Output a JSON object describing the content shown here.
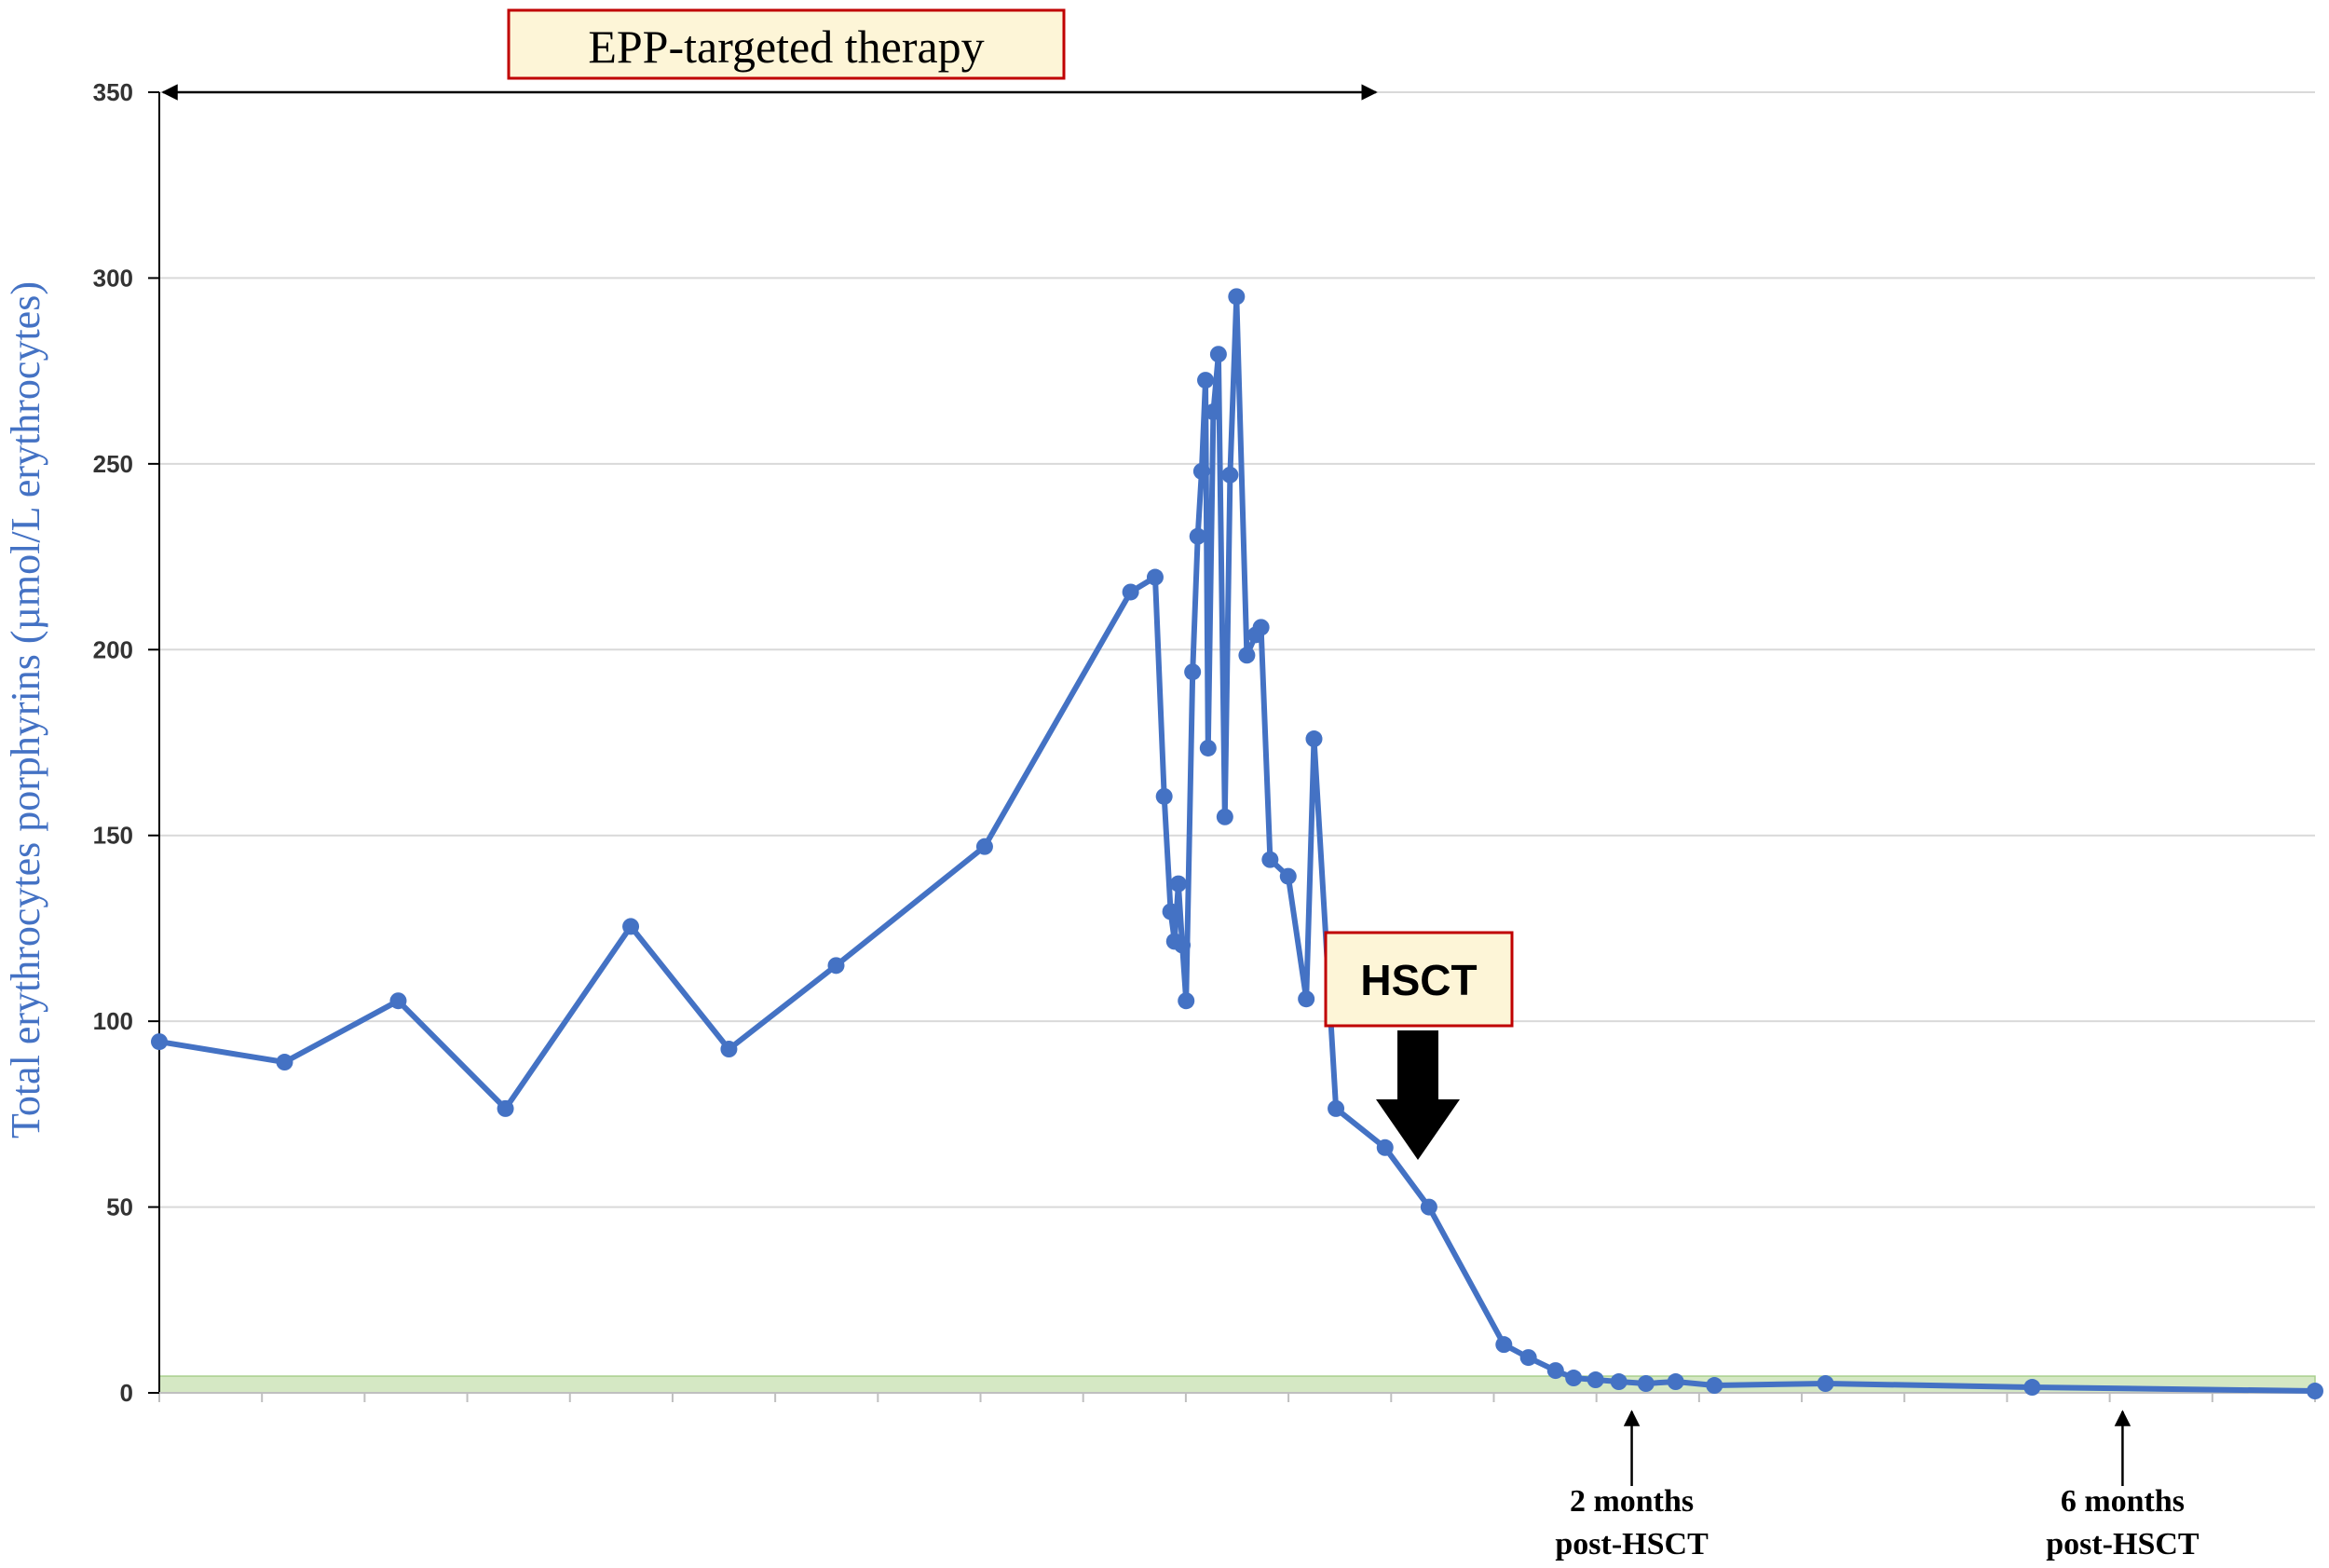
{
  "chart_data": {
    "type": "line",
    "ylabel": "Total erythrocytes porphyrins (µmol/L erythrocytes)",
    "xlabel": "",
    "ylim": [
      0,
      350
    ],
    "yticks": [
      0,
      50,
      100,
      150,
      200,
      250,
      300,
      350
    ],
    "grid": "horizontal",
    "series_color": "#4472c4",
    "reference_band": {
      "range": [
        0,
        4.5
      ],
      "color": "#d5e8c4"
    },
    "x": [
      0,
      9.7,
      18.5,
      26.8,
      36.5,
      44.1,
      52.4,
      63.9,
      75.2,
      77.1,
      77.8,
      78.3,
      78.6,
      78.9,
      79.2,
      79.5,
      80.0,
      80.4,
      80.7,
      81.0,
      81.2,
      81.6,
      82.0,
      82.5,
      82.9,
      83.4,
      84.2,
      84.9,
      85.3,
      86.0,
      87.4,
      88.8,
      89.4,
      91.1,
      94.9,
      98.3,
      104.1,
      106.0,
      108.1,
      109.5,
      111.2,
      113.0,
      115.1,
      117.4,
      120.4,
      129.0,
      145.0,
      166.9
    ],
    "values": [
      94.5,
      89,
      105.5,
      76.5,
      125.5,
      92.5,
      115,
      147,
      215.5,
      219.5,
      160.5,
      129.5,
      121.5,
      137,
      120.5,
      105.5,
      194,
      230.5,
      248,
      272.5,
      173.5,
      264,
      279.5,
      155,
      247,
      295,
      198.5,
      204,
      206,
      143.5,
      139,
      106,
      176,
      76.5,
      66,
      50,
      13,
      9.5,
      6,
      4,
      3.5,
      3,
      2.5,
      3,
      2,
      2.5,
      1.5,
      0.5
    ],
    "annotations": {
      "therapy_label": "EPP-targeted therapy",
      "therapy_range": [
        0,
        100
      ],
      "hsct_label": "HSCT",
      "hsct_x": 104.1,
      "markers": [
        {
          "line1": "2 months",
          "line2": "post-HSCT",
          "x": 114
        },
        {
          "line1": "6 months",
          "line2": "post-HSCT",
          "x": 152
        }
      ]
    }
  }
}
